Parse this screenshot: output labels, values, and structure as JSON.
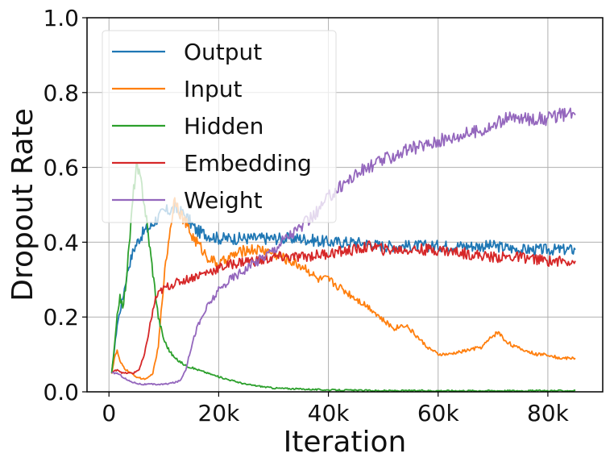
{
  "chart_data": {
    "type": "line",
    "title": "",
    "xlabel": "Iteration",
    "ylabel": "Dropout Rate",
    "xlim": [
      -4000,
      90000
    ],
    "ylim": [
      0,
      1.0
    ],
    "grid": true,
    "legend_position": "top-left",
    "x_ticks": [
      0,
      20000,
      40000,
      60000,
      80000
    ],
    "x_tick_labels": [
      "0",
      "20k",
      "40k",
      "60k",
      "80k"
    ],
    "y_ticks": [
      0.0,
      0.2,
      0.4,
      0.6,
      0.8,
      1.0
    ],
    "y_tick_labels": [
      "0.0",
      "0.2",
      "0.4",
      "0.6",
      "0.8",
      "1.0"
    ],
    "series": [
      {
        "name": "Output",
        "color": "#1f77b4",
        "x": [
          500,
          1500,
          2500,
          3500,
          4500,
          5500,
          6500,
          7500,
          8500,
          10000,
          12000,
          14000,
          16000,
          18000,
          20000,
          25000,
          30000,
          35000,
          40000,
          45000,
          50000,
          55000,
          60000,
          65000,
          70000,
          75000,
          80000,
          85000
        ],
        "y": [
          0.05,
          0.18,
          0.25,
          0.33,
          0.38,
          0.41,
          0.43,
          0.44,
          0.46,
          0.48,
          0.49,
          0.47,
          0.43,
          0.42,
          0.41,
          0.41,
          0.41,
          0.41,
          0.4,
          0.4,
          0.39,
          0.39,
          0.39,
          0.39,
          0.39,
          0.38,
          0.38,
          0.38
        ]
      },
      {
        "name": "Input",
        "color": "#ff7f0e",
        "x": [
          500,
          1000,
          1500,
          2000,
          3000,
          4000,
          5000,
          6000,
          7000,
          8000,
          9000,
          10000,
          11000,
          12000,
          13000,
          14000,
          15000,
          16000,
          18000,
          20000,
          22000,
          25000,
          28000,
          30000,
          33000,
          36000,
          38000,
          40000,
          42000,
          44000,
          46000,
          48000,
          50000,
          52000,
          54000,
          56000,
          58000,
          60000,
          62000,
          65000,
          68000,
          70000,
          71000,
          72000,
          74000,
          76000,
          78000,
          80000,
          82000,
          85000
        ],
        "y": [
          0.05,
          0.09,
          0.11,
          0.08,
          0.06,
          0.05,
          0.04,
          0.035,
          0.035,
          0.05,
          0.12,
          0.3,
          0.42,
          0.52,
          0.48,
          0.45,
          0.42,
          0.4,
          0.36,
          0.34,
          0.36,
          0.38,
          0.38,
          0.37,
          0.35,
          0.33,
          0.3,
          0.3,
          0.28,
          0.26,
          0.24,
          0.22,
          0.19,
          0.17,
          0.18,
          0.15,
          0.12,
          0.1,
          0.1,
          0.11,
          0.12,
          0.15,
          0.16,
          0.14,
          0.12,
          0.11,
          0.1,
          0.1,
          0.09,
          0.09
        ]
      },
      {
        "name": "Hidden",
        "color": "#2ca02c",
        "x": [
          500,
          1000,
          1500,
          2000,
          2500,
          3000,
          3500,
          4000,
          4500,
          5000,
          5500,
          6000,
          6500,
          7000,
          7500,
          8000,
          8500,
          9000,
          10000,
          11000,
          12000,
          14000,
          16000,
          18000,
          20000,
          25000,
          30000,
          40000,
          50000,
          60000,
          70000,
          85000
        ],
        "y": [
          0.05,
          0.12,
          0.2,
          0.26,
          0.22,
          0.28,
          0.36,
          0.45,
          0.54,
          0.6,
          0.58,
          0.55,
          0.5,
          0.44,
          0.38,
          0.32,
          0.26,
          0.2,
          0.14,
          0.11,
          0.09,
          0.07,
          0.06,
          0.05,
          0.04,
          0.02,
          0.01,
          0.005,
          0.003,
          0.003,
          0.003,
          0.003
        ]
      },
      {
        "name": "Embedding",
        "color": "#d62728",
        "x": [
          500,
          1500,
          2500,
          3500,
          4500,
          5500,
          6500,
          7500,
          8500,
          9500,
          10500,
          12000,
          14000,
          16000,
          18000,
          20000,
          22000,
          25000,
          28000,
          30000,
          35000,
          40000,
          45000,
          48000,
          50000,
          55000,
          60000,
          65000,
          70000,
          75000,
          80000,
          85000
        ],
        "y": [
          0.05,
          0.06,
          0.05,
          0.05,
          0.05,
          0.06,
          0.1,
          0.18,
          0.25,
          0.27,
          0.28,
          0.29,
          0.3,
          0.31,
          0.32,
          0.33,
          0.34,
          0.35,
          0.35,
          0.36,
          0.36,
          0.37,
          0.38,
          0.39,
          0.38,
          0.38,
          0.38,
          0.37,
          0.36,
          0.36,
          0.35,
          0.35
        ]
      },
      {
        "name": "Weight",
        "color": "#9467bd",
        "x": [
          500,
          1500,
          2500,
          3500,
          4500,
          6000,
          8000,
          10000,
          12000,
          13000,
          14000,
          15000,
          16000,
          17000,
          18000,
          19000,
          20000,
          22000,
          24000,
          26000,
          28000,
          30000,
          32000,
          35000,
          38000,
          40000,
          43000,
          46000,
          50000,
          55000,
          60000,
          65000,
          68000,
          70000,
          72000,
          75000,
          78000,
          80000,
          82000,
          85000
        ],
        "y": [
          0.05,
          0.05,
          0.04,
          0.03,
          0.025,
          0.02,
          0.02,
          0.02,
          0.025,
          0.03,
          0.06,
          0.12,
          0.17,
          0.2,
          0.23,
          0.25,
          0.27,
          0.3,
          0.32,
          0.34,
          0.36,
          0.38,
          0.41,
          0.44,
          0.48,
          0.52,
          0.56,
          0.59,
          0.62,
          0.65,
          0.67,
          0.69,
          0.7,
          0.71,
          0.73,
          0.73,
          0.73,
          0.73,
          0.74,
          0.74
        ]
      }
    ]
  }
}
